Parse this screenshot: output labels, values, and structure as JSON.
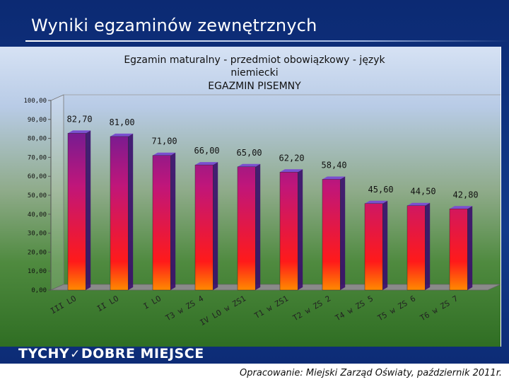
{
  "slide": {
    "title": "Wyniki egzaminów zewnętrznych",
    "logo_left": "TYCHY",
    "logo_right": "DOBRE MIEJSCE",
    "credit": "Opracowanie: Miejski Zarząd Oświaty, październik 2011r."
  },
  "chart_data": {
    "type": "bar",
    "title_lines": [
      "Egzamin maturalny - przedmiot obowiązkowy - język",
      "niemiecki",
      "EGAZMIN PISEMNY"
    ],
    "categories": [
      "III LO",
      "II LO",
      "I LO",
      "T3 w ZS 4",
      "IV LO w ZS1",
      "T1 w ZS1",
      "T2 w ZS 2",
      "T4 w ZS 5",
      "T5 w ZS 6",
      "T6 w ZS 7"
    ],
    "values": [
      82.7,
      81.0,
      71.0,
      66.0,
      65.0,
      62.2,
      58.4,
      45.6,
      44.5,
      42.8
    ],
    "value_labels": [
      "82,70",
      "81,00",
      "71,00",
      "66,00",
      "65,00",
      "62,20",
      "58,40",
      "45,60",
      "44,50",
      "42,80"
    ],
    "y_ticks": [
      "0,00",
      "10,00",
      "20,00",
      "30,00",
      "40,00",
      "50,00",
      "60,00",
      "70,00",
      "80,00",
      "90,00",
      "100,00"
    ],
    "ylim": [
      0,
      100
    ],
    "xlabel": "",
    "ylabel": "",
    "grid": false,
    "colors": {
      "top": "#4a1fa0",
      "mid": "#c0167a",
      "low": "#ff1a1a",
      "base": "#ff8a00"
    }
  }
}
